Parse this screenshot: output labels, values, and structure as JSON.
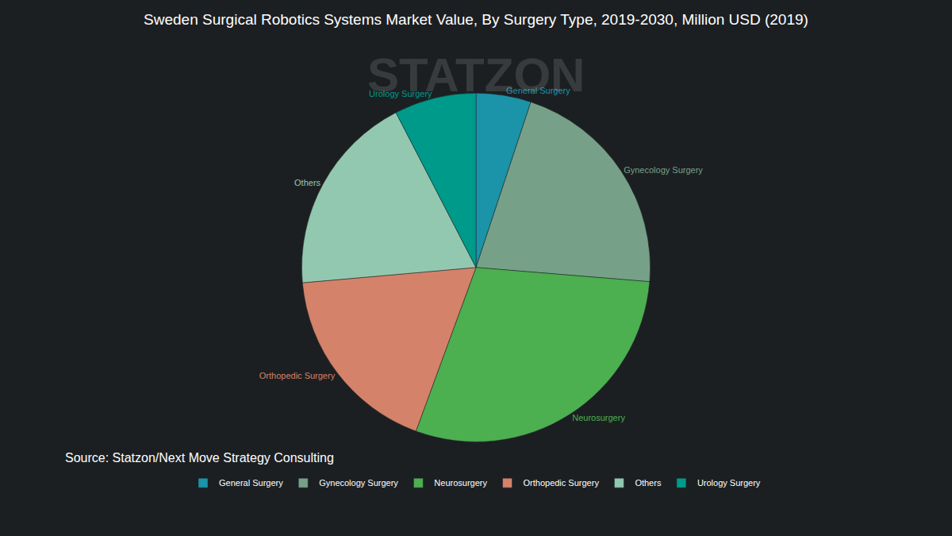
{
  "chart_data": {
    "type": "pie",
    "title": "Sweden Surgical Robotics Systems Market Value, By Surgery Type, 2019-2030, Million USD (2019)",
    "categories": [
      "General Surgery",
      "Gynecology Surgery",
      "Neurosurgery",
      "Orthopedic Surgery",
      "Others",
      "Urology Surgery"
    ],
    "values": [
      5.1,
      21.2,
      29.3,
      18.0,
      18.8,
      7.6
    ],
    "colors": [
      "#1b93a8",
      "#76a188",
      "#4caf50",
      "#d4826a",
      "#93c8b0",
      "#009a8a"
    ],
    "source": "Source: Statzon/Next Move Strategy Consulting",
    "watermark": "STATZON",
    "legend": "bottom",
    "data_labels": false
  }
}
